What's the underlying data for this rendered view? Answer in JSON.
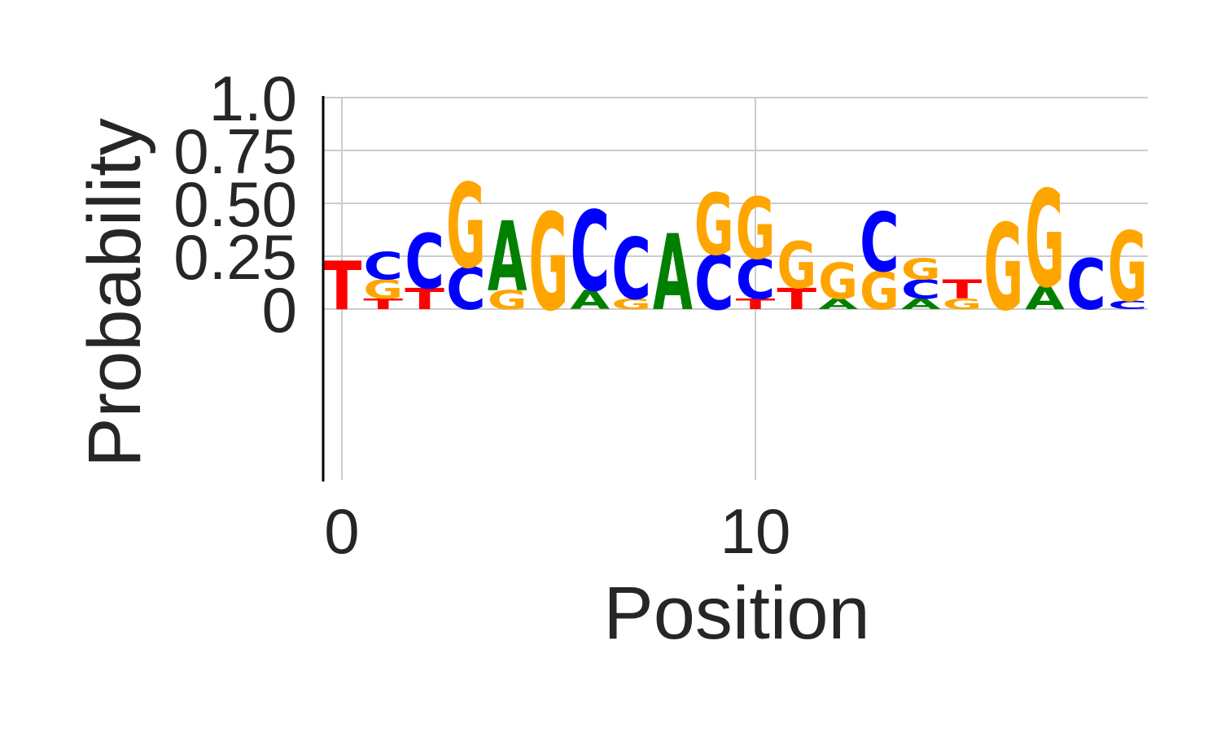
{
  "chart_data": {
    "type": "sequence-logo",
    "xlabel": "Position",
    "ylabel": "Probability",
    "ylim": [
      -0.8,
      1.0
    ],
    "xlim": [
      -0.5,
      19.0
    ],
    "xticks": [
      {
        "value": 0,
        "label": "0"
      },
      {
        "value": 10,
        "label": "10"
      }
    ],
    "yticks": [
      {
        "value": 0,
        "label": "0"
      },
      {
        "value": 0.25,
        "label": "0.25"
      },
      {
        "value": 0.5,
        "label": "0.50"
      },
      {
        "value": 0.75,
        "label": "0.75"
      },
      {
        "value": 1.0,
        "label": "1.0"
      }
    ],
    "grid": true,
    "colors": {
      "A": "#008000",
      "C": "#0000ff",
      "G": "#ffa500",
      "T": "#ff0000"
    },
    "positions": [
      {
        "x": 0,
        "letters": [
          {
            "base": "T",
            "height": 0.23
          }
        ]
      },
      {
        "x": 1,
        "letters": [
          {
            "base": "T",
            "height": 0.05
          },
          {
            "base": "G",
            "height": 0.09
          },
          {
            "base": "C",
            "height": 0.13
          }
        ]
      },
      {
        "x": 2,
        "letters": [
          {
            "base": "T",
            "height": 0.1
          },
          {
            "base": "C",
            "height": 0.26
          }
        ]
      },
      {
        "x": 3,
        "letters": [
          {
            "base": "C",
            "height": 0.2
          },
          {
            "base": "G",
            "height": 0.4
          }
        ]
      },
      {
        "x": 4,
        "letters": [
          {
            "base": "G",
            "height": 0.09
          },
          {
            "base": "A",
            "height": 0.33
          }
        ]
      },
      {
        "x": 5,
        "letters": [
          {
            "base": "G",
            "height": 0.46
          }
        ]
      },
      {
        "x": 6,
        "letters": [
          {
            "base": "A",
            "height": 0.09
          },
          {
            "base": "C",
            "height": 0.38
          }
        ]
      },
      {
        "x": 7,
        "letters": [
          {
            "base": "G",
            "height": 0.05
          },
          {
            "base": "C",
            "height": 0.29
          }
        ]
      },
      {
        "x": 8,
        "letters": [
          {
            "base": "A",
            "height": 0.36
          }
        ]
      },
      {
        "x": 9,
        "letters": [
          {
            "base": "C",
            "height": 0.26
          },
          {
            "base": "G",
            "height": 0.29
          }
        ]
      },
      {
        "x": 10,
        "letters": [
          {
            "base": "T",
            "height": 0.05
          },
          {
            "base": "C",
            "height": 0.19
          },
          {
            "base": "G",
            "height": 0.29
          }
        ]
      },
      {
        "x": 11,
        "letters": [
          {
            "base": "T",
            "height": 0.1
          },
          {
            "base": "G",
            "height": 0.22
          }
        ]
      },
      {
        "x": 12,
        "letters": [
          {
            "base": "A",
            "height": 0.05
          },
          {
            "base": "G",
            "height": 0.17
          }
        ]
      },
      {
        "x": 13,
        "letters": [
          {
            "base": "G",
            "height": 0.18
          },
          {
            "base": "C",
            "height": 0.28
          }
        ]
      },
      {
        "x": 14,
        "letters": [
          {
            "base": "A",
            "height": 0.05
          },
          {
            "base": "C",
            "height": 0.09
          },
          {
            "base": "G",
            "height": 0.1
          }
        ]
      },
      {
        "x": 15,
        "letters": [
          {
            "base": "G",
            "height": 0.05
          },
          {
            "base": "T",
            "height": 0.09
          }
        ]
      },
      {
        "x": 16,
        "letters": [
          {
            "base": "G",
            "height": 0.41
          }
        ]
      },
      {
        "x": 17,
        "letters": [
          {
            "base": "A",
            "height": 0.11
          },
          {
            "base": "G",
            "height": 0.46
          }
        ]
      },
      {
        "x": 18,
        "letters": [
          {
            "base": "C",
            "height": 0.24
          }
        ]
      },
      {
        "x": 19,
        "letters": [
          {
            "base": "C",
            "height": 0.04
          },
          {
            "base": "G",
            "height": 0.33
          }
        ]
      }
    ]
  }
}
